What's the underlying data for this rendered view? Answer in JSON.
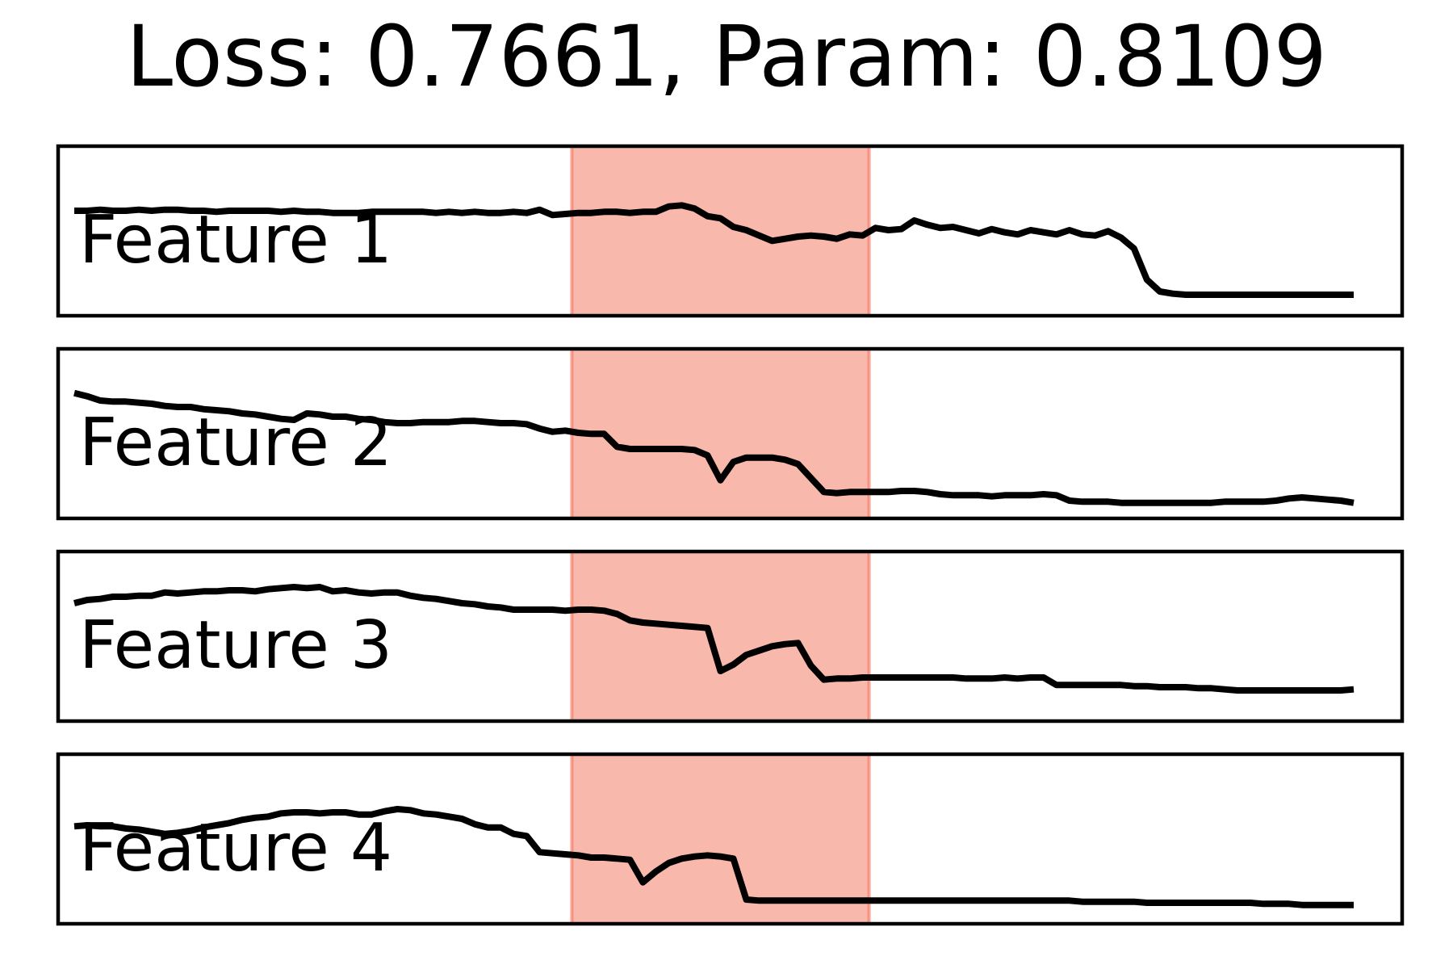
{
  "title": "Loss: 0.7661, Param: 0.8109",
  "highlight_color": "#f4725a",
  "line_color": "#000000",
  "chart_data": {
    "type": "line",
    "title": "Loss: 0.7661, Param: 0.8109",
    "x": [
      0,
      2,
      4,
      6,
      8,
      10,
      12,
      14,
      16,
      18,
      20,
      22,
      24,
      26,
      28,
      30,
      32,
      34,
      36,
      38,
      40,
      42,
      44,
      46,
      48,
      50,
      52,
      54,
      56,
      58,
      60,
      62,
      64,
      66,
      68,
      70,
      72,
      74,
      76,
      78,
      80,
      82,
      84,
      86,
      88,
      90,
      92,
      94,
      96,
      98,
      100,
      102,
      104,
      106,
      108,
      110,
      112,
      114,
      116,
      118,
      120,
      122,
      124,
      126,
      128,
      130,
      132,
      134,
      136,
      138,
      140,
      142,
      144,
      146,
      148,
      150,
      152,
      154,
      156,
      158,
      160,
      162,
      164,
      166,
      168,
      170,
      172,
      174,
      176,
      178,
      180,
      182,
      184,
      186,
      188,
      190,
      192,
      194,
      196,
      198
    ],
    "xlim": [
      0,
      198
    ],
    "highlight_range": [
      77,
      123
    ],
    "grid": false,
    "legend": "none",
    "series": [
      {
        "name": "Feature 1",
        "values": [
          0.8,
          0.8,
          0.81,
          0.8,
          0.8,
          0.81,
          0.8,
          0.81,
          0.81,
          0.8,
          0.8,
          0.79,
          0.8,
          0.8,
          0.8,
          0.8,
          0.79,
          0.8,
          0.79,
          0.79,
          0.78,
          0.78,
          0.78,
          0.79,
          0.79,
          0.79,
          0.79,
          0.79,
          0.78,
          0.79,
          0.78,
          0.79,
          0.78,
          0.78,
          0.79,
          0.78,
          0.81,
          0.76,
          0.77,
          0.78,
          0.78,
          0.79,
          0.79,
          0.78,
          0.79,
          0.79,
          0.84,
          0.85,
          0.82,
          0.75,
          0.73,
          0.65,
          0.62,
          0.57,
          0.52,
          0.54,
          0.56,
          0.57,
          0.56,
          0.54,
          0.58,
          0.57,
          0.64,
          0.62,
          0.63,
          0.71,
          0.67,
          0.64,
          0.65,
          0.62,
          0.59,
          0.63,
          0.6,
          0.58,
          0.62,
          0.6,
          0.58,
          0.62,
          0.58,
          0.57,
          0.61,
          0.55,
          0.45,
          0.16,
          0.05,
          0.03,
          0.02,
          0.02,
          0.02,
          0.02,
          0.02,
          0.02,
          0.02,
          0.02,
          0.02,
          0.02,
          0.02,
          0.02,
          0.02,
          0.02
        ]
      },
      {
        "name": "Feature 2",
        "values": [
          0.99,
          0.96,
          0.92,
          0.91,
          0.91,
          0.9,
          0.89,
          0.87,
          0.86,
          0.86,
          0.84,
          0.83,
          0.82,
          0.8,
          0.79,
          0.77,
          0.75,
          0.74,
          0.8,
          0.79,
          0.77,
          0.77,
          0.75,
          0.74,
          0.72,
          0.71,
          0.71,
          0.72,
          0.72,
          0.72,
          0.73,
          0.73,
          0.72,
          0.71,
          0.71,
          0.7,
          0.66,
          0.63,
          0.64,
          0.62,
          0.61,
          0.61,
          0.49,
          0.47,
          0.47,
          0.47,
          0.47,
          0.47,
          0.46,
          0.41,
          0.18,
          0.35,
          0.39,
          0.39,
          0.39,
          0.37,
          0.33,
          0.2,
          0.07,
          0.06,
          0.07,
          0.07,
          0.07,
          0.07,
          0.08,
          0.08,
          0.07,
          0.05,
          0.04,
          0.04,
          0.04,
          0.03,
          0.04,
          0.04,
          0.04,
          0.05,
          0.04,
          -0.01,
          -0.02,
          -0.02,
          -0.02,
          -0.03,
          -0.03,
          -0.03,
          -0.03,
          -0.03,
          -0.03,
          -0.03,
          -0.03,
          -0.02,
          -0.02,
          -0.02,
          -0.02,
          -0.01,
          0.01,
          0.02,
          0.01,
          0.0,
          -0.01,
          -0.03
        ]
      },
      {
        "name": "Feature 3",
        "values": [
          0.92,
          0.95,
          0.96,
          0.98,
          0.98,
          0.99,
          0.99,
          1.02,
          1.01,
          1.02,
          1.03,
          1.03,
          1.04,
          1.04,
          1.03,
          1.05,
          1.06,
          1.07,
          1.06,
          1.07,
          1.03,
          1.04,
          1.02,
          1.01,
          1.02,
          1.02,
          0.99,
          0.97,
          0.96,
          0.94,
          0.92,
          0.91,
          0.89,
          0.88,
          0.86,
          0.86,
          0.86,
          0.86,
          0.85,
          0.86,
          0.86,
          0.85,
          0.82,
          0.76,
          0.74,
          0.73,
          0.72,
          0.71,
          0.7,
          0.69,
          0.29,
          0.35,
          0.44,
          0.48,
          0.52,
          0.54,
          0.55,
          0.34,
          0.21,
          0.22,
          0.22,
          0.23,
          0.23,
          0.23,
          0.23,
          0.23,
          0.23,
          0.23,
          0.23,
          0.22,
          0.22,
          0.22,
          0.23,
          0.22,
          0.23,
          0.23,
          0.16,
          0.16,
          0.16,
          0.16,
          0.16,
          0.16,
          0.15,
          0.15,
          0.14,
          0.14,
          0.14,
          0.13,
          0.13,
          0.12,
          0.11,
          0.11,
          0.11,
          0.11,
          0.11,
          0.11,
          0.11,
          0.11,
          0.11,
          0.12
        ]
      },
      {
        "name": "Feature 4",
        "values": [
          0.73,
          0.74,
          0.73,
          0.73,
          0.71,
          0.7,
          0.68,
          0.66,
          0.67,
          0.69,
          0.72,
          0.74,
          0.76,
          0.79,
          0.81,
          0.82,
          0.85,
          0.86,
          0.86,
          0.85,
          0.86,
          0.86,
          0.84,
          0.84,
          0.87,
          0.89,
          0.88,
          0.85,
          0.84,
          0.82,
          0.8,
          0.75,
          0.72,
          0.72,
          0.66,
          0.64,
          0.49,
          0.48,
          0.47,
          0.46,
          0.44,
          0.44,
          0.43,
          0.42,
          0.21,
          0.31,
          0.39,
          0.43,
          0.45,
          0.46,
          0.45,
          0.43,
          0.05,
          0.04,
          0.04,
          0.04,
          0.04,
          0.04,
          0.04,
          0.04,
          0.04,
          0.04,
          0.04,
          0.04,
          0.04,
          0.04,
          0.04,
          0.04,
          0.04,
          0.04,
          0.04,
          0.04,
          0.04,
          0.04,
          0.04,
          0.04,
          0.04,
          0.04,
          0.03,
          0.03,
          0.03,
          0.03,
          0.03,
          0.02,
          0.02,
          0.02,
          0.02,
          0.02,
          0.02,
          0.02,
          0.02,
          0.02,
          0.01,
          0.01,
          0.01,
          0.0,
          0.0,
          0.0,
          0.0,
          0.0
        ]
      }
    ]
  }
}
